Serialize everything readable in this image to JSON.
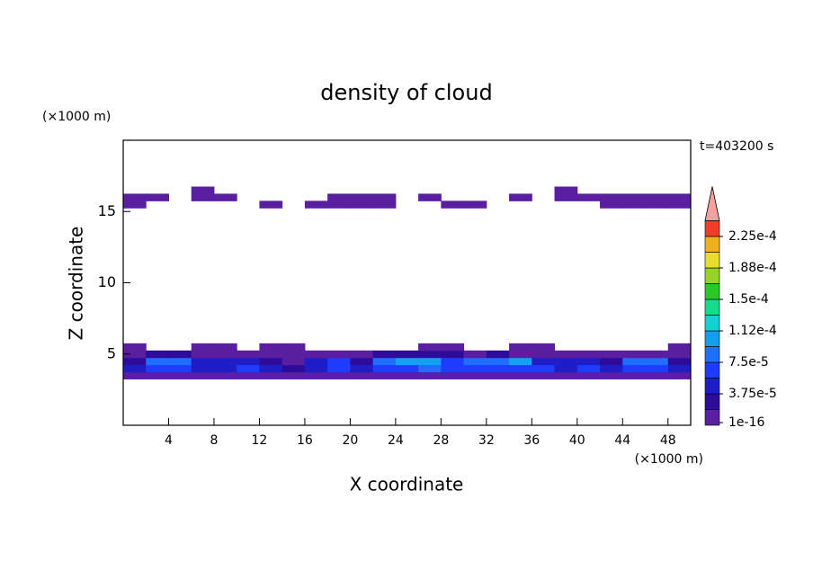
{
  "chart_data": {
    "type": "contour",
    "title": "density of cloud",
    "subtitle": "t=403200 s",
    "x_label": "X coordinate",
    "y_label": "Z coordinate",
    "x_unit": "(×1000 m)",
    "y_unit": "(×1000 m)",
    "xlim": [
      0,
      50
    ],
    "ylim": [
      0,
      20
    ],
    "xticks": [
      4,
      8,
      12,
      16,
      20,
      24,
      28,
      32,
      36,
      40,
      44,
      48
    ],
    "yticks": [
      5,
      10,
      15
    ],
    "x": [
      1,
      3,
      5,
      7,
      9,
      11,
      13,
      15,
      17,
      19,
      21,
      23,
      25,
      27,
      29,
      31,
      33,
      35,
      37,
      39,
      41,
      43,
      45,
      47,
      49
    ],
    "z": [
      3.5,
      4.0,
      4.5,
      5.0,
      5.5,
      15.5,
      16.0,
      16.5
    ],
    "values": [
      [
        5e-06,
        5e-06,
        5e-06,
        5e-06,
        5e-06,
        5e-06,
        5e-06,
        5e-06,
        5e-06,
        5e-06,
        5e-06,
        5e-06,
        5e-06,
        5e-06,
        5e-06,
        5e-06,
        5e-06,
        5e-06,
        5e-06,
        5e-06,
        5e-06,
        5e-06,
        5e-06,
        5e-06,
        5e-06
      ],
      [
        4e-05,
        6e-05,
        7e-05,
        5e-05,
        5e-05,
        6e-05,
        4e-05,
        3e-05,
        5e-05,
        6e-05,
        5e-05,
        6e-05,
        7e-05,
        8e-05,
        6e-05,
        6e-05,
        7e-05,
        7e-05,
        6e-05,
        5e-05,
        6e-05,
        5e-05,
        6e-05,
        7e-05,
        5e-05
      ],
      [
        3e-05,
        9e-05,
        8e-05,
        4e-05,
        5e-05,
        4e-05,
        2e-05,
        1e-05,
        5e-05,
        6e-05,
        3e-05,
        9e-05,
        0.00011,
        0.0001,
        6e-05,
        8e-05,
        9e-05,
        0.0001,
        5e-05,
        4e-05,
        5e-05,
        3e-05,
        8e-05,
        9e-05,
        3e-05
      ],
      [
        1e-05,
        2e-05,
        2e-05,
        1e-05,
        1e-05,
        1e-05,
        1e-05,
        2e-06,
        1e-05,
        1e-05,
        1e-05,
        2e-05,
        2e-05,
        2e-05,
        2e-05,
        1e-05,
        2e-05,
        1e-05,
        1e-05,
        1e-05,
        1e-05,
        1e-05,
        1e-05,
        1e-05,
        1e-05
      ],
      [
        2e-06,
        null,
        null,
        2e-06,
        2e-06,
        null,
        5e-06,
        2e-06,
        null,
        null,
        null,
        null,
        null,
        2e-06,
        2e-06,
        null,
        null,
        2e-06,
        2e-06,
        null,
        null,
        null,
        null,
        null,
        2e-06
      ],
      [
        4e-06,
        null,
        null,
        null,
        null,
        null,
        4e-06,
        null,
        4e-06,
        4e-06,
        4e-06,
        4e-06,
        null,
        null,
        4e-06,
        4e-06,
        null,
        null,
        null,
        null,
        null,
        4e-06,
        4e-06,
        4e-06,
        4e-06
      ],
      [
        4e-06,
        4e-06,
        null,
        4e-06,
        4e-06,
        null,
        null,
        null,
        null,
        4e-06,
        4e-06,
        4e-06,
        null,
        4e-06,
        null,
        null,
        null,
        4e-06,
        null,
        4e-06,
        4e-06,
        4e-06,
        4e-06,
        4e-06,
        4e-06
      ],
      [
        null,
        null,
        null,
        4e-06,
        null,
        null,
        null,
        null,
        null,
        null,
        null,
        null,
        null,
        null,
        null,
        null,
        null,
        null,
        null,
        4e-06,
        null,
        null,
        null,
        null,
        null
      ]
    ],
    "levels": [
      1e-16,
      1.875e-05,
      3.75e-05,
      5.625e-05,
      7.5e-05,
      9.375e-05,
      0.000112,
      0.000131,
      0.00015,
      0.000169,
      0.000188,
      0.000206,
      0.000225
    ],
    "colors": [
      "#5a1ea0",
      "#2d0c9c",
      "#1e1ec8",
      "#1e3cff",
      "#1e6eff",
      "#14a0f0",
      "#14d2d2",
      "#14dc8c",
      "#28c828",
      "#96d228",
      "#e6dc32",
      "#f0af1e",
      "#f03c28"
    ],
    "extend_color": "#f4a0a0",
    "colorbar_ticks": [
      {
        "value": 1e-16,
        "label": "1e-16"
      },
      {
        "value": 3.75e-05,
        "label": "3.75e-5"
      },
      {
        "value": 7.5e-05,
        "label": "7.5e-5"
      },
      {
        "value": 0.000112,
        "label": "1.12e-4"
      },
      {
        "value": 0.00015,
        "label": "1.5e-4"
      },
      {
        "value": 0.000188,
        "label": "1.88e-4"
      },
      {
        "value": 0.000225,
        "label": "2.25e-4"
      }
    ]
  }
}
